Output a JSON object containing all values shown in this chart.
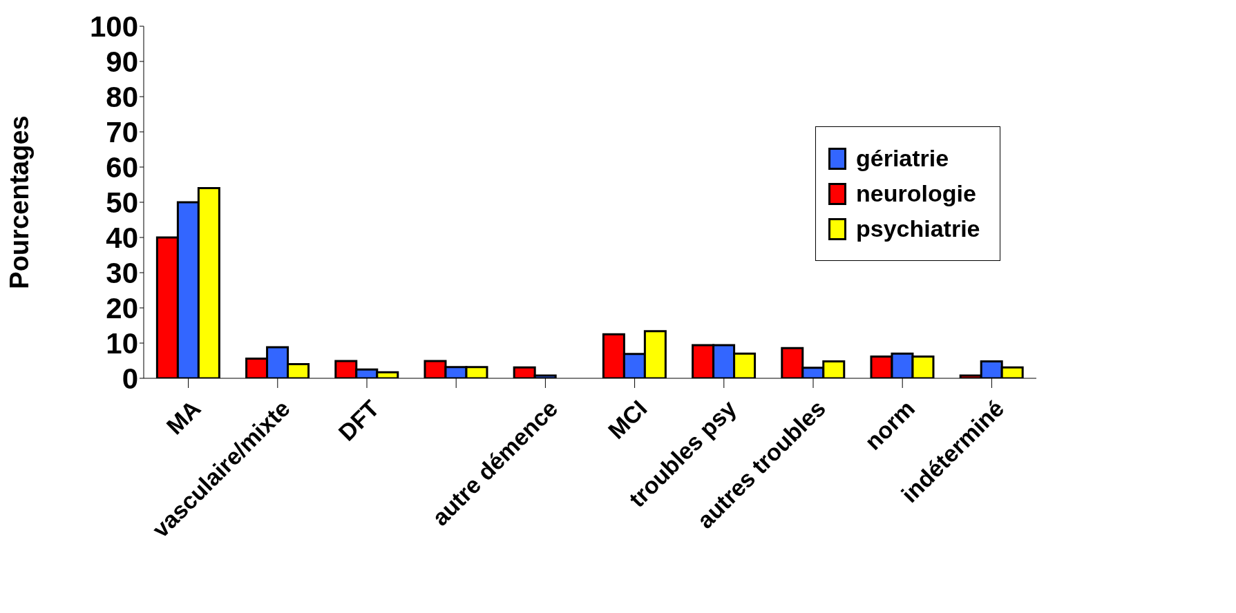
{
  "chart_data": {
    "type": "bar",
    "ylabel": "Pourcentages",
    "categories": [
      "MA",
      "vasculaire/mixte",
      "DFT",
      null,
      "autre démence",
      "MCI",
      "troubles psy",
      "autres troubles",
      "norm",
      "indéterminé"
    ],
    "series": [
      {
        "name": "neurologie",
        "color": "#ff0000",
        "values": [
          40,
          5.6,
          4.9,
          4.9,
          3.1,
          12.5,
          9.4,
          8.6,
          6.2,
          0.8
        ]
      },
      {
        "name": "gériatrie",
        "color": "#3366ff",
        "values": [
          50,
          8.8,
          2.5,
          3.2,
          0.8,
          6.9,
          9.4,
          3,
          7,
          4.8
        ]
      },
      {
        "name": "psychiatrie",
        "color": "#ffff00",
        "values": [
          54,
          4,
          1.7,
          3.2,
          0,
          13.4,
          7,
          4.8,
          6.2,
          3.1
        ]
      }
    ],
    "ylim": [
      0,
      100
    ],
    "yticks": [
      0,
      10,
      20,
      30,
      40,
      50,
      60,
      70,
      80,
      90,
      100
    ],
    "grid": false,
    "legend": "top right"
  }
}
